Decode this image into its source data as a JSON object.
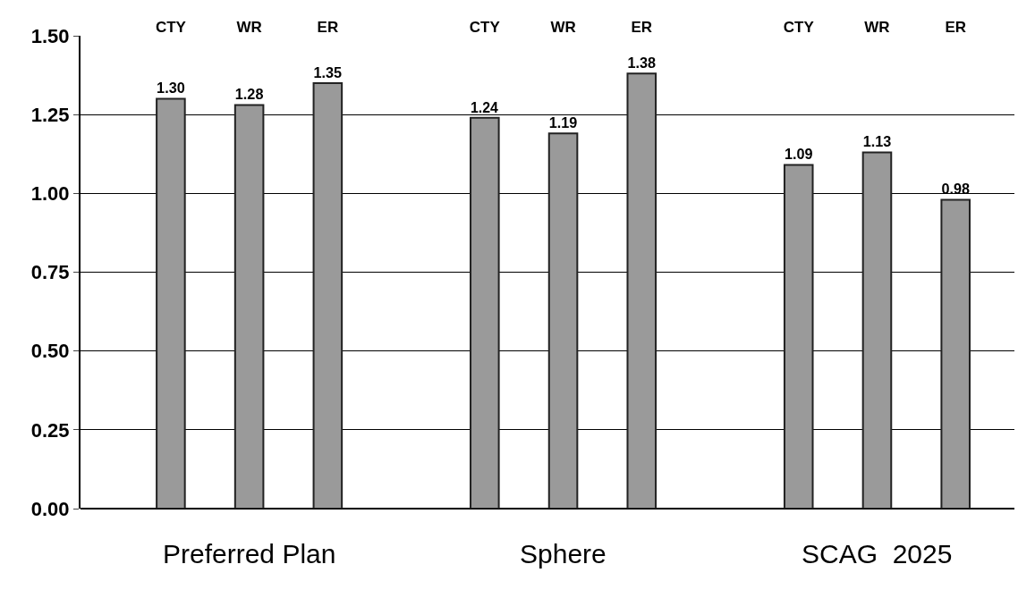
{
  "chart_data": {
    "type": "bar",
    "categories": [
      "CTY",
      "WR",
      "ER",
      null,
      "CTY",
      "WR",
      "ER",
      null,
      "CTY",
      "WR",
      "ER"
    ],
    "values": [
      1.3,
      1.28,
      1.35,
      null,
      1.24,
      1.19,
      1.38,
      null,
      1.09,
      1.13,
      0.98
    ],
    "color": "#9a9a9a",
    "ylim": [
      0,
      1.5
    ],
    "yticks": [
      {
        "value": 0,
        "label": "0.00"
      },
      {
        "value": 0.25,
        "label": "0.25"
      },
      {
        "value": 0.5,
        "label": "0.50"
      },
      {
        "value": 0.75,
        "label": "0.75"
      },
      {
        "value": 1,
        "label": "1.00"
      },
      {
        "value": 1.25,
        "label": "1.25"
      },
      {
        "value": 1.5,
        "label": "1.50"
      }
    ],
    "value_labels": [
      "1.30",
      "1.28",
      "1.35",
      null,
      "1.24",
      "1.19",
      "1.38",
      null,
      "1.09",
      "1.13",
      "0.98"
    ],
    "grid": "y",
    "annotations": [
      "Preferred Plan",
      "Sphere",
      "SCAG  2025"
    ]
  }
}
